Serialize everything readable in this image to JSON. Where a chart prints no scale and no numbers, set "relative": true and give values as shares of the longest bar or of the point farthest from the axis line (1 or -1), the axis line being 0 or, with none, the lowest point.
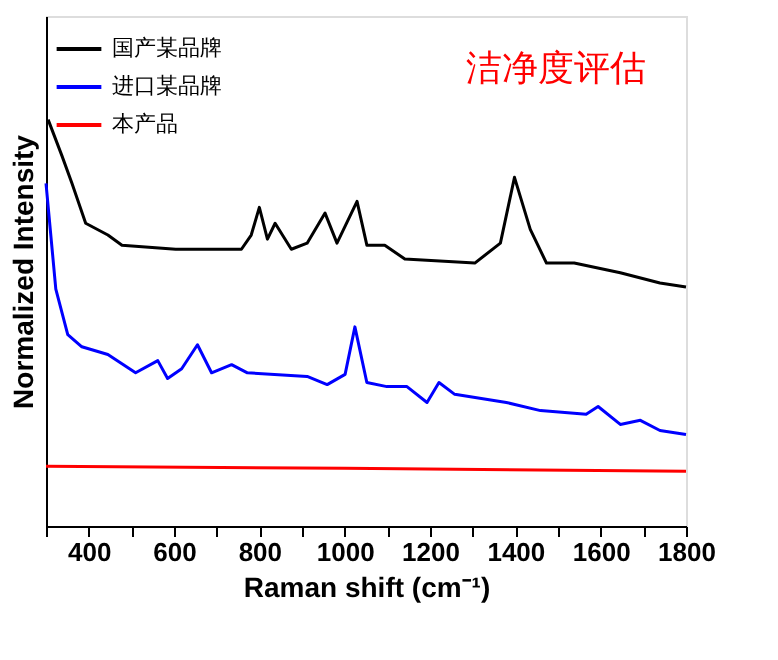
{
  "chart_data": {
    "type": "line",
    "relative": true,
    "xlabel": "Raman shift (cm⁻¹)",
    "ylabel": "Normalized Intensity",
    "annotations": [
      "洁净度评估"
    ],
    "xlim": [
      300,
      1800
    ],
    "xticks": [
      {
        "value": 300,
        "label": null
      },
      400,
      {
        "value": 500,
        "label": null
      },
      600,
      {
        "value": 700,
        "label": null
      },
      800,
      {
        "value": 900,
        "label": null
      },
      1000,
      {
        "value": 1100,
        "label": null
      },
      1200,
      {
        "value": 1300,
        "label": null
      },
      1400,
      {
        "value": 1500,
        "label": null
      },
      1600,
      {
        "value": 1700,
        "label": null
      },
      1800
    ],
    "legend": "top left",
    "series": [
      {
        "name": "国产某品牌",
        "color": "#000000",
        "x": [
          305,
          337,
          361,
          393,
          445,
          478,
          604,
          758,
          781,
          800,
          819,
          837,
          875,
          912,
          954,
          982,
          1029,
          1052,
          1094,
          1141,
          1305,
          1365,
          1398,
          1435,
          1473,
          1538,
          1646,
          1739,
          1800
        ],
        "values": [
          1.0,
          0.912,
          0.843,
          0.745,
          0.716,
          0.691,
          0.681,
          0.681,
          0.716,
          0.784,
          0.706,
          0.745,
          0.681,
          0.696,
          0.77,
          0.696,
          0.799,
          0.691,
          0.691,
          0.657,
          0.647,
          0.696,
          0.858,
          0.73,
          0.647,
          0.647,
          0.623,
          0.598,
          0.588
        ]
      },
      {
        "name": "进口某品牌",
        "color": "#0000ff",
        "x": [
          300,
          323,
          351,
          384,
          445,
          510,
          562,
          585,
          618,
          655,
          688,
          735,
          772,
          912,
          959,
          1001,
          1024,
          1052,
          1099,
          1146,
          1193,
          1221,
          1258,
          1379,
          1459,
          1566,
          1594,
          1646,
          1693,
          1739,
          1800
        ],
        "values": [
          0.843,
          0.583,
          0.471,
          0.441,
          0.422,
          0.377,
          0.407,
          0.363,
          0.387,
          0.446,
          0.377,
          0.397,
          0.377,
          0.368,
          0.348,
          0.373,
          0.49,
          0.353,
          0.343,
          0.343,
          0.304,
          0.353,
          0.324,
          0.304,
          0.284,
          0.275,
          0.294,
          0.25,
          0.26,
          0.235,
          0.225
        ]
      },
      {
        "name": "本产品",
        "color": "#ff0000",
        "x": [
          300,
          1000,
          1800
        ],
        "values": [
          0.147,
          0.142,
          0.135
        ]
      }
    ]
  }
}
